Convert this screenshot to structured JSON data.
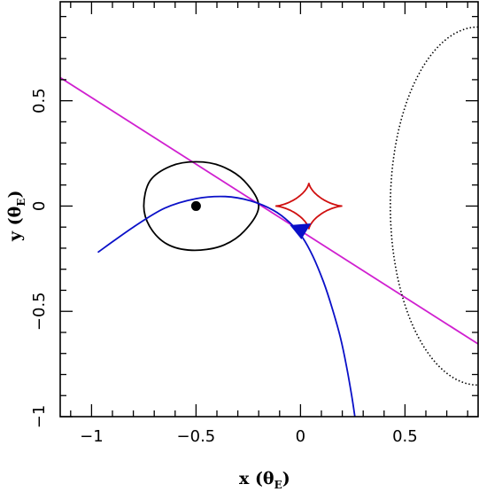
{
  "chart_data": {
    "type": "line",
    "xlabel": "x (θ",
    "xlabel_sub": "E",
    "xlabel_close": ")",
    "ylabel": "y (θ",
    "ylabel_sub": "E",
    "ylabel_close": ")",
    "xlim": [
      -1.15,
      0.85
    ],
    "ylim": [
      -1.0,
      0.97
    ],
    "x_major_ticks": [
      -1,
      -0.5,
      0,
      0.5
    ],
    "x_tick_labels": [
      "−1",
      "−0.5",
      "0",
      "0.5"
    ],
    "y_major_ticks": [
      -1,
      -0.5,
      0,
      0.5
    ],
    "y_tick_labels": [
      "−1",
      "−0.5",
      "0",
      "0.5"
    ],
    "minor_tick_step": 0.1,
    "grid": false,
    "colors": {
      "magenta_line": "#d020d0",
      "blue_trajectory": "#0a10c8",
      "red_caustic": "#d01010",
      "black_curve": "#000000",
      "dotted_curve": "#000000"
    },
    "series": [
      {
        "kind": "straight-line",
        "color": "magenta",
        "points": [
          [
            -1.15,
            0.61
          ],
          [
            0.85,
            -0.655
          ]
        ]
      },
      {
        "kind": "closed-curve",
        "color": "black",
        "center": [
          -0.475,
          0.0
        ],
        "shape": "oval",
        "points": [
          [
            -0.75,
            0.0
          ],
          [
            -0.72,
            0.12
          ],
          [
            -0.62,
            0.19
          ],
          [
            -0.5,
            0.21
          ],
          [
            -0.38,
            0.19
          ],
          [
            -0.27,
            0.12
          ],
          [
            -0.2,
            0.0
          ],
          [
            -0.27,
            -0.12
          ],
          [
            -0.38,
            -0.19
          ],
          [
            -0.52,
            -0.21
          ],
          [
            -0.64,
            -0.18
          ],
          [
            -0.72,
            -0.1
          ],
          [
            -0.75,
            0.0
          ]
        ]
      },
      {
        "kind": "point",
        "color": "black",
        "x": -0.5,
        "y": 0.0
      },
      {
        "kind": "astroid-caustic",
        "color": "red",
        "center": [
          0.04,
          0.0
        ],
        "half_width": 0.16,
        "half_height": 0.11
      },
      {
        "kind": "trajectory",
        "color": "blue",
        "points": [
          [
            -0.97,
            -0.22
          ],
          [
            -0.8,
            -0.1
          ],
          [
            -0.65,
            -0.01
          ],
          [
            -0.5,
            0.035
          ],
          [
            -0.36,
            0.045
          ],
          [
            -0.24,
            0.025
          ],
          [
            -0.13,
            -0.02
          ],
          [
            -0.05,
            -0.08
          ],
          [
            0.01,
            -0.15
          ],
          [
            0.06,
            -0.24
          ],
          [
            0.11,
            -0.36
          ],
          [
            0.15,
            -0.48
          ],
          [
            0.19,
            -0.62
          ],
          [
            0.22,
            -0.76
          ],
          [
            0.245,
            -0.9
          ],
          [
            0.26,
            -1.0
          ]
        ]
      },
      {
        "kind": "arrowhead",
        "color": "blue",
        "x": 0.0,
        "y": -0.12
      },
      {
        "kind": "dotted-arc",
        "color": "black",
        "center": [
          0.85,
          0.0
        ],
        "semi_axis_x": 0.42,
        "semi_axis_y": 0.85
      }
    ]
  }
}
